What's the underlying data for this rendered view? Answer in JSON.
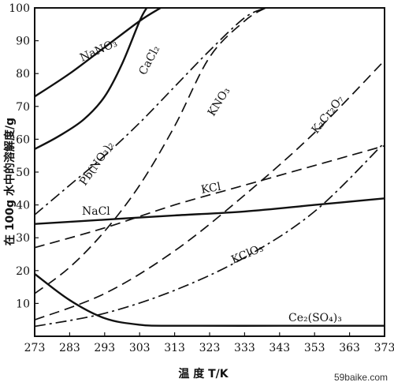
{
  "chart_data": {
    "type": "line",
    "xlabel": "温 度 T/K",
    "ylabel": "在 100g 水中的溶解度/g",
    "xlim": [
      273,
      373
    ],
    "ylim": [
      0,
      100
    ],
    "x_ticks": [
      "273",
      "283",
      "293",
      "303",
      "313",
      "323",
      "333",
      "343",
      "353",
      "363",
      "373"
    ],
    "y_ticks": [
      "10",
      "20",
      "30",
      "40",
      "50",
      "60",
      "70",
      "80",
      "90",
      "100"
    ],
    "grid": false,
    "series": [
      {
        "name": "NaNO3",
        "label_text": "NaNO₃",
        "style": "solid",
        "x": [
          273,
          283,
          293,
          303,
          309
        ],
        "y": [
          73,
          80,
          88,
          96,
          100
        ]
      },
      {
        "name": "CaCl2",
        "label_text": "CaCl₂",
        "style": "solid",
        "x": [
          273,
          280,
          287,
          293,
          298,
          303,
          305
        ],
        "y": [
          57,
          61,
          66,
          73,
          83,
          96,
          100
        ]
      },
      {
        "name": "NaCl",
        "label_text": "NaCl",
        "style": "solid",
        "x": [
          273,
          293,
          313,
          333,
          353,
          373
        ],
        "y": [
          34.2,
          35.5,
          36.8,
          38.0,
          40.0,
          42.0
        ]
      },
      {
        "name": "Pb(NO3)2",
        "label_text": "Pb(NO₃)₂",
        "style": "dashdot",
        "x": [
          273,
          283,
          293,
          303,
          313,
          323,
          333,
          339
        ],
        "y": [
          37,
          46,
          55,
          65,
          76,
          87,
          97,
          100
        ]
      },
      {
        "name": "KNO3",
        "label_text": "KNO₃",
        "style": "dashed",
        "x": [
          273,
          283,
          293,
          303,
          313,
          323,
          333,
          339
        ],
        "y": [
          13,
          21,
          32,
          46,
          64,
          85,
          96,
          100
        ]
      },
      {
        "name": "K2Cr2O7",
        "label_text": "K₂Cr₂O₇",
        "style": "dashed",
        "x": [
          273,
          293,
          313,
          333,
          353,
          373
        ],
        "y": [
          5,
          13,
          26,
          43,
          62,
          84
        ]
      },
      {
        "name": "KCl",
        "label_text": "KCl",
        "style": "dashed",
        "x": [
          273,
          293,
          313,
          333,
          353,
          373
        ],
        "y": [
          27,
          33,
          40,
          46,
          52,
          58
        ]
      },
      {
        "name": "KClO3",
        "label_text": "KClO₃",
        "style": "dashdot",
        "x": [
          273,
          293,
          313,
          333,
          353,
          373
        ],
        "y": [
          3,
          7,
          14,
          24,
          38,
          59
        ]
      },
      {
        "name": "Ce2(SO4)3",
        "label_text": "Ce₂(SO₄)₃",
        "style": "solid",
        "x": [
          273,
          283,
          293,
          303,
          313,
          343,
          373
        ],
        "y": [
          19,
          11,
          5.5,
          3.5,
          3.2,
          3.2,
          3.2
        ]
      }
    ]
  },
  "watermark": "59baike.com"
}
